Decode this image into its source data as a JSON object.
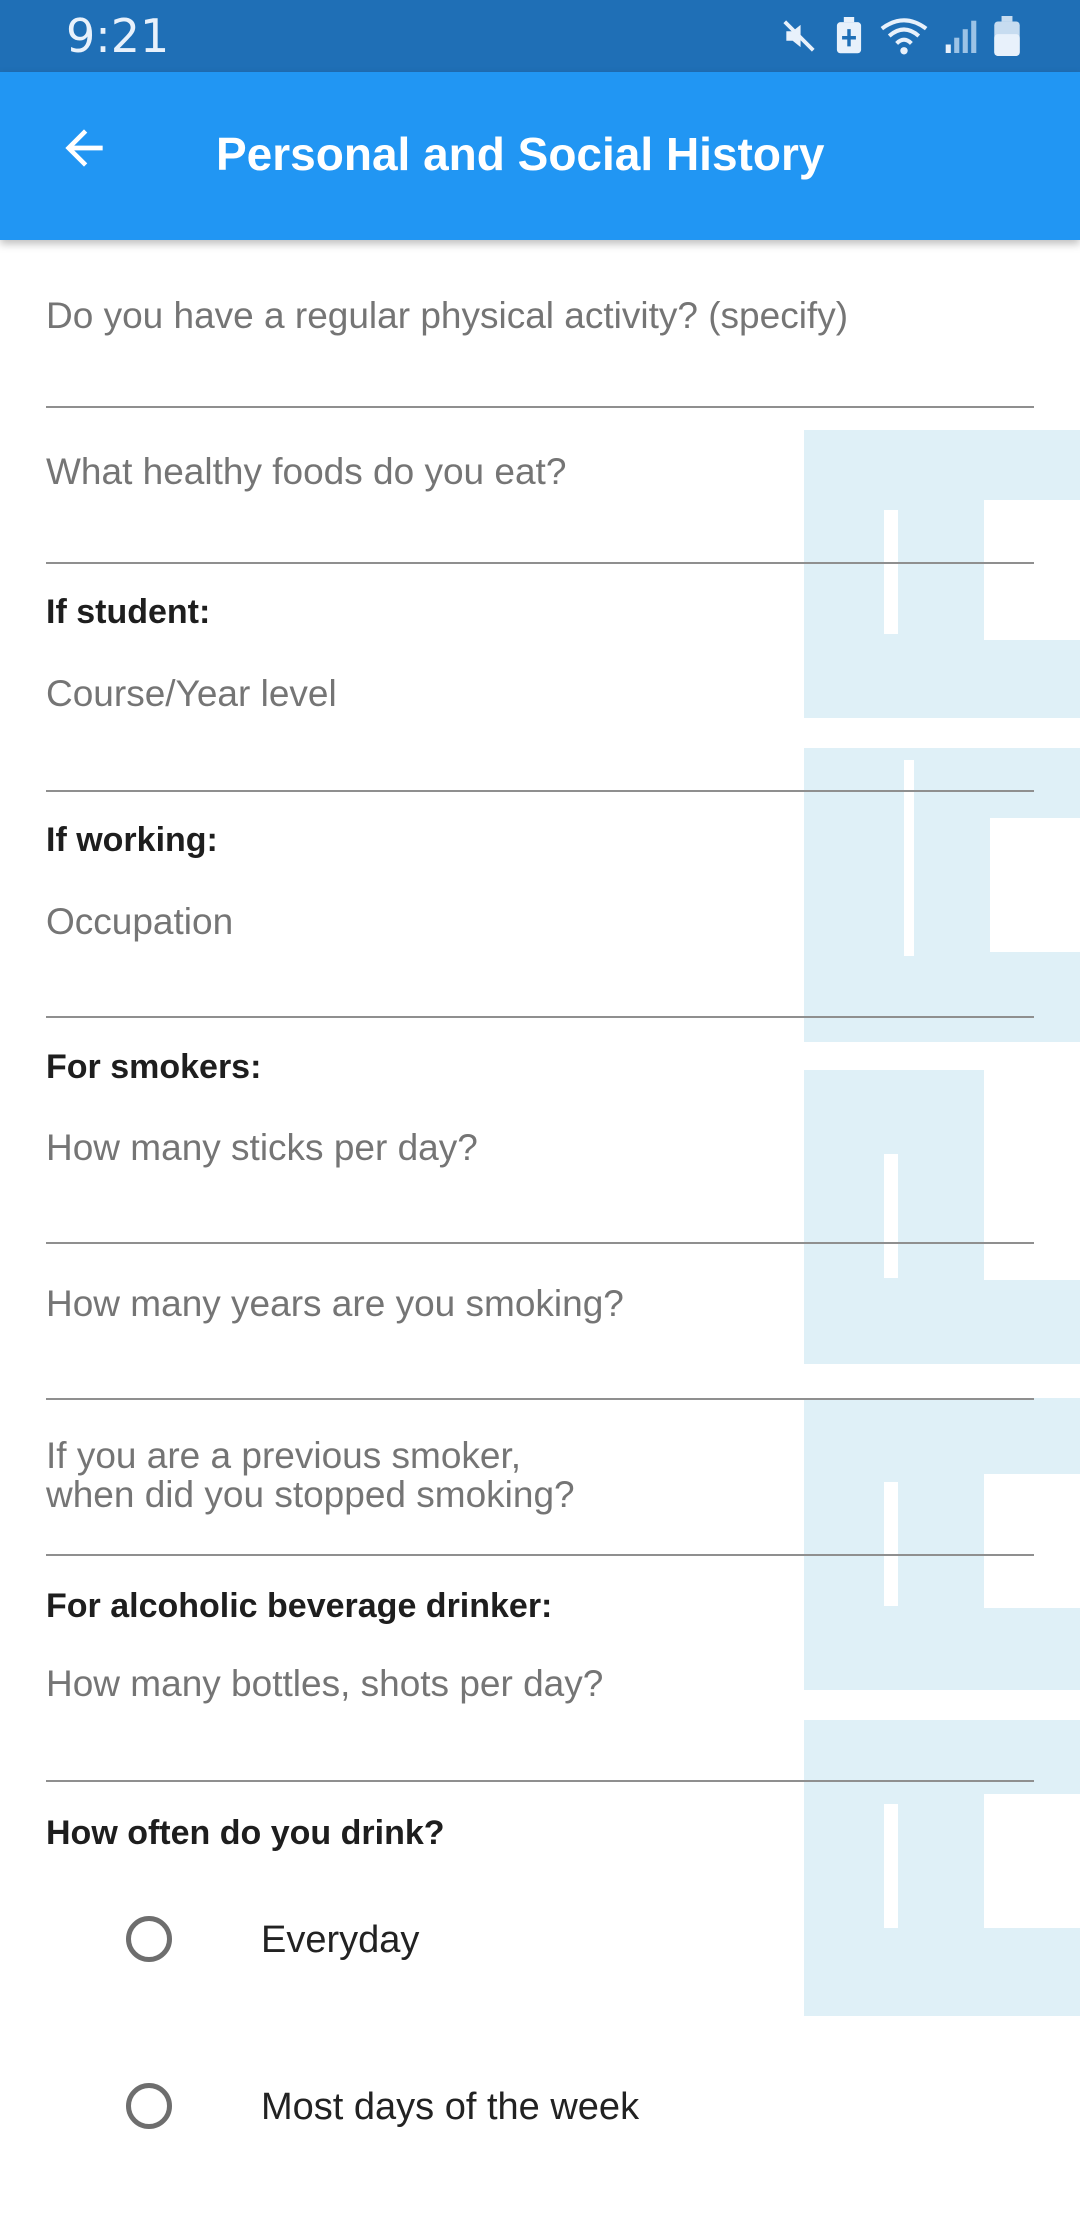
{
  "status_bar": {
    "time": "9:21",
    "icons": [
      "mute-icon",
      "battery-saver-icon",
      "wifi-icon",
      "signal-icon",
      "battery-icon"
    ]
  },
  "app_bar": {
    "back_icon": "arrow-left-icon",
    "title": "Personal and Social History"
  },
  "form": {
    "physical_activity": {
      "placeholder": "Do you have a regular physical activity? (specify)"
    },
    "healthy_foods": {
      "placeholder": "What healthy foods do you eat?"
    },
    "student": {
      "label": "If student:",
      "course_year": {
        "placeholder": "Course/Year level"
      }
    },
    "working": {
      "label": "If working:",
      "occupation": {
        "placeholder": "Occupation"
      }
    },
    "smokers": {
      "label": "For smokers:",
      "sticks_per_day": {
        "placeholder": "How many sticks per day?"
      },
      "years_smoking": {
        "placeholder": "How many years are you smoking?"
      },
      "stopped_smoking": {
        "placeholder_line1": "If you are a previous smoker,",
        "placeholder_line2": "when did you stopped smoking?"
      }
    },
    "alcohol": {
      "label": "For alcoholic beverage drinker:",
      "bottles_per_day": {
        "placeholder": "How many bottles, shots per day?"
      },
      "frequency_label": "How often do you drink?",
      "frequency_options": [
        {
          "label": "Everyday",
          "selected": false
        },
        {
          "label": "Most days of the week",
          "selected": false
        }
      ]
    }
  },
  "colors": {
    "status_bar": "#1f6fb6",
    "app_bar": "#2196f3",
    "watermark": "#dff0f7"
  }
}
